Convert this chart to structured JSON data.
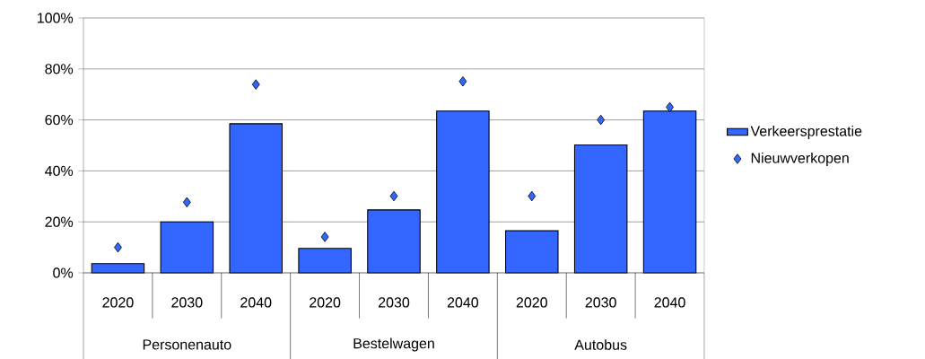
{
  "chart_data": {
    "type": "bar",
    "categories": [
      "2020",
      "2030",
      "2040",
      "2020",
      "2030",
      "2040",
      "2020",
      "2030",
      "2040"
    ],
    "series": [
      {
        "name": "Verkeersprestatie",
        "color": "#3366ff",
        "values": [
          3.6,
          20,
          58.5,
          9.6,
          24.7,
          63.5,
          16.5,
          50.2,
          63.5
        ]
      },
      {
        "name": "Nieuwverkopen",
        "type": "scatter",
        "color": "#3366ff",
        "values": [
          10,
          27.7,
          73.9,
          14.1,
          30.1,
          75.1,
          30.1,
          60,
          65
        ]
      }
    ],
    "marker": "diamond",
    "ylim": [
      0,
      100
    ],
    "yticks": [
      {
        "value": 0,
        "label": "0%"
      },
      {
        "value": 20,
        "label": "20%"
      },
      {
        "value": 40,
        "label": "40%"
      },
      {
        "value": 60,
        "label": "60%"
      },
      {
        "value": 80,
        "label": "80%"
      },
      {
        "value": 100,
        "label": "100%"
      }
    ],
    "grid": "y",
    "legend": "right",
    "annotations": [
      "Personenauto",
      "Bestelwagen",
      "Autobus"
    ]
  }
}
